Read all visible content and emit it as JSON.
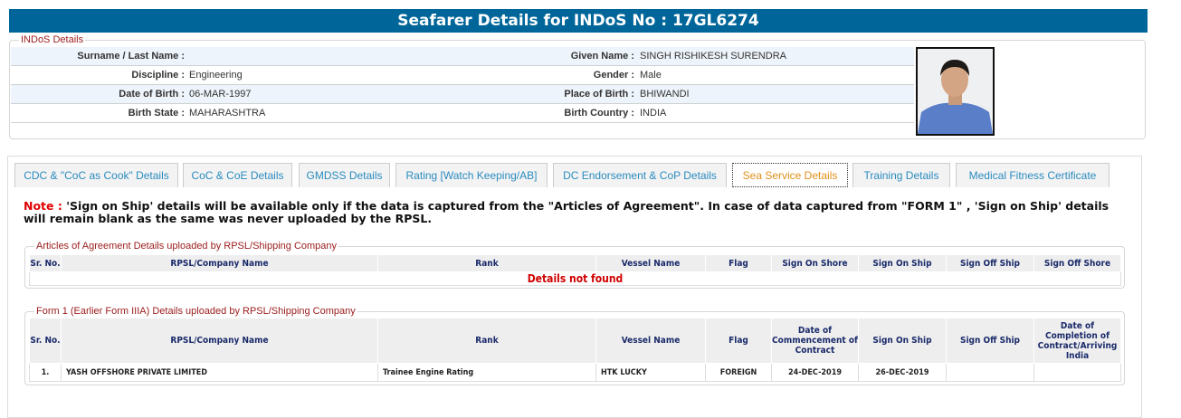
{
  "header": {
    "title": "Seafarer Details for INDoS No : 17GL6274"
  },
  "indos": {
    "legend": "INDoS Details",
    "rows": [
      {
        "l1": "Surname / Last Name :",
        "v1": "",
        "l2": "Given Name :",
        "v2": "SINGH RISHIKESH SURENDRA"
      },
      {
        "l1": "Discipline :",
        "v1": "Engineering",
        "l2": "Gender :",
        "v2": "Male"
      },
      {
        "l1": "Date of Birth :",
        "v1": "06-MAR-1997",
        "l2": "Place of Birth :",
        "v2": "BHIWANDI"
      },
      {
        "l1": "Birth State :",
        "v1": "MAHARASHTRA",
        "l2": "Birth Country :",
        "v2": "INDIA"
      }
    ]
  },
  "tabs": [
    "CDC & \"CoC as Cook\" Details",
    "CoC & CoE Details",
    "GMDSS Details",
    "Rating [Watch Keeping/AB]",
    "DC Endorsement & CoP Details",
    "Sea Service Details",
    "Training Details",
    "Medical Fitness Certificate"
  ],
  "active_tab": "Sea Service Details",
  "note": {
    "label": "Note :",
    "text": " 'Sign on Ship' details will be available only if the data is captured from the \"Articles of Agreement\". In case of data captured from \"FORM 1\" , 'Sign on Ship' details will remain blank as the same was never uploaded by the RPSL."
  },
  "articles": {
    "legend": "Articles of Agreement Details uploaded by RPSL/Shipping Company",
    "columns": [
      "Sr. No.",
      "RPSL/Company Name",
      "Rank",
      "Vessel Name",
      "Flag",
      "Sign On Shore",
      "Sign On Ship",
      "Sign Off Ship",
      "Sign Off Shore"
    ],
    "empty": "Details not found"
  },
  "form1": {
    "legend": "Form 1 (Earlier Form IIIA) Details uploaded by RPSL/Shipping Company",
    "columns": [
      "Sr. No.",
      "RPSL/Company Name",
      "Rank",
      "Vessel Name",
      "Flag",
      "Date of Commencement of Contract",
      "Sign On Ship",
      "Sign Off Ship",
      "Date of Completion of Contract/Arriving India"
    ],
    "rows": [
      [
        "1.",
        "YASH OFFSHORE PRIVATE LIMITED",
        "Trainee Engine Rating",
        "HTK LUCKY",
        "FOREIGN",
        "24-DEC-2019",
        "26-DEC-2019",
        "",
        ""
      ]
    ]
  },
  "colors": {
    "header": "#00669a",
    "legend": "#9b1b1b",
    "tab_text": "#2a8bbf",
    "active_tab": "#e0901b",
    "error": "#d00000"
  }
}
